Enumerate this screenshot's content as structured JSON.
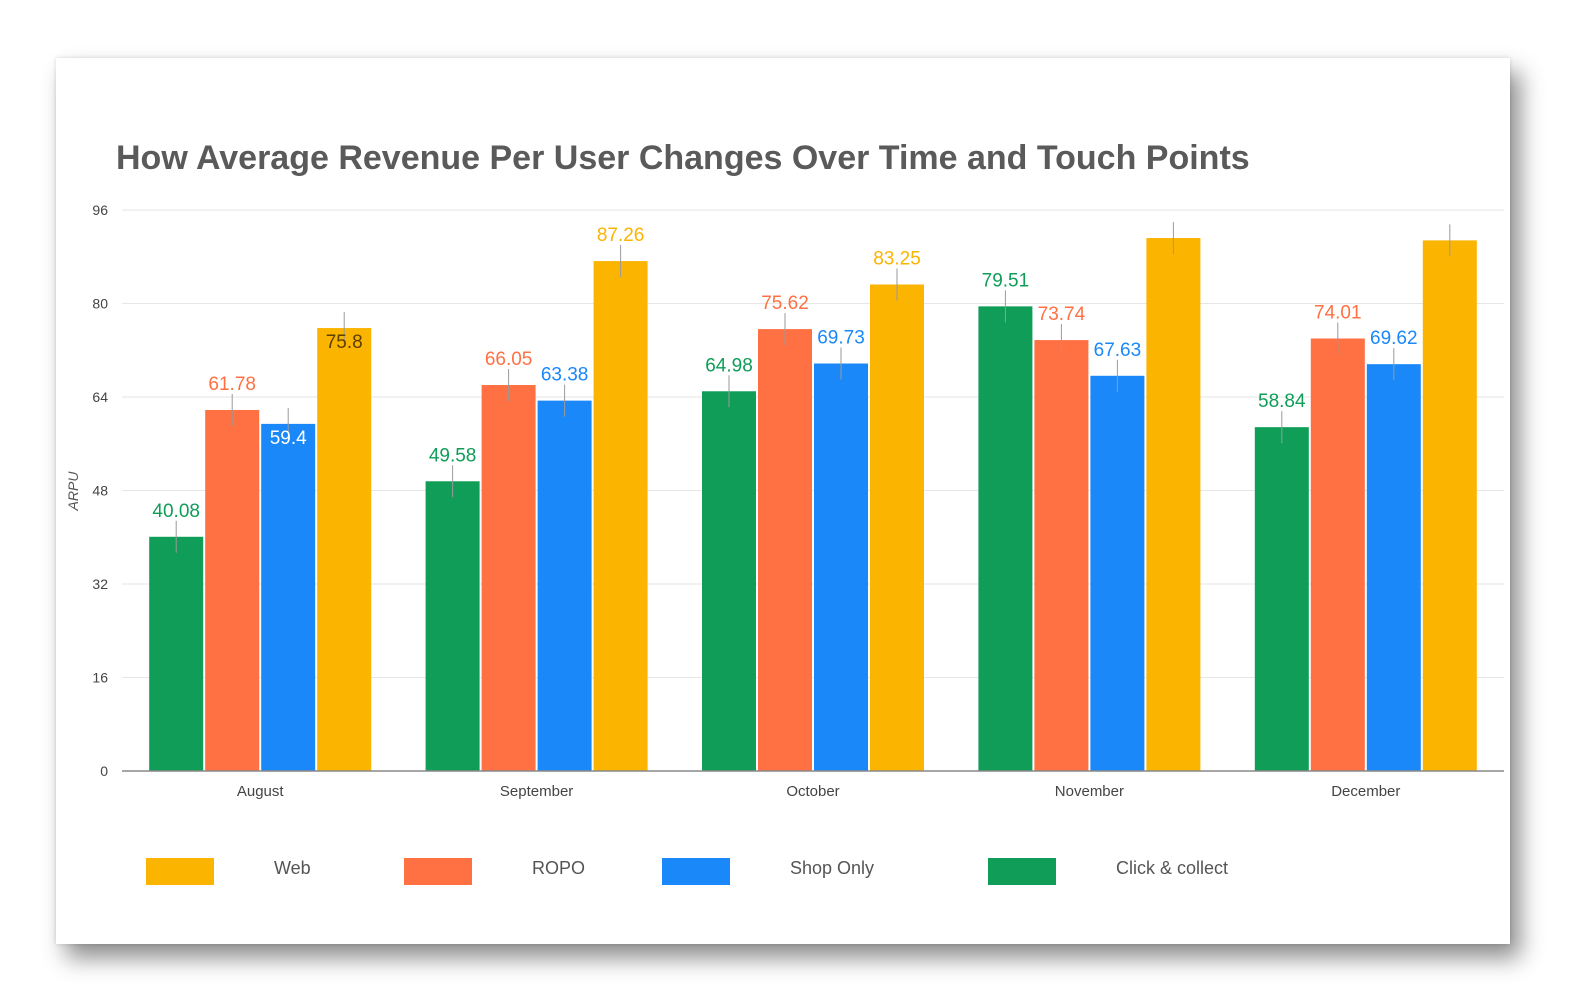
{
  "chart_data": {
    "type": "bar",
    "title": "How Average Revenue Per User Changes Over Time and Touch Points",
    "xlabel": "",
    "ylabel": "ARPU",
    "ylim": [
      0,
      96
    ],
    "yticks": [
      "0",
      "16",
      "32",
      "48",
      "64",
      "80",
      "96"
    ],
    "categories": [
      "August",
      "September",
      "October",
      "November",
      "December"
    ],
    "grid": true,
    "legend_position": "bottom",
    "series": [
      {
        "name": "Click & collect",
        "color": "#0f9d58",
        "values": [
          40.08,
          49.58,
          64.98,
          79.51,
          58.84
        ],
        "labels": [
          "40.08",
          "49.58",
          "64.98",
          "79.51",
          "58.84"
        ]
      },
      {
        "name": "ROPO",
        "color": "#ff7043",
        "values": [
          61.78,
          66.05,
          75.62,
          73.74,
          74.01
        ],
        "labels": [
          "61.78",
          "66.05",
          "75.62",
          "73.74",
          "74.01"
        ]
      },
      {
        "name": "Shop Only",
        "color": "#1a88f8",
        "values": [
          59.4,
          63.38,
          69.73,
          67.63,
          69.62
        ],
        "labels": [
          "59.4",
          "63.38",
          "69.73",
          "67.63",
          "69.62"
        ]
      },
      {
        "name": "Web",
        "color": "#fbb400",
        "values": [
          75.8,
          87.26,
          83.25,
          91.2,
          90.8
        ],
        "labels": [
          "75.8",
          "87.26",
          "83.25",
          "",
          ""
        ]
      }
    ],
    "legend_order": [
      "Web",
      "ROPO",
      "Shop Only",
      "Click & collect"
    ]
  }
}
